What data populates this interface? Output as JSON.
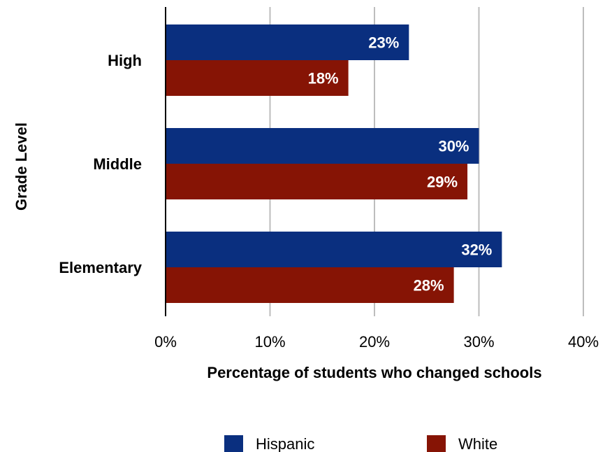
{
  "chart_data": {
    "type": "bar",
    "orientation": "horizontal",
    "categories": [
      "High",
      "Middle",
      "Elementary"
    ],
    "series": [
      {
        "name": "Hispanic",
        "color": "#0a2f7f",
        "values": [
          23.3,
          30.0,
          32.2
        ],
        "labels": [
          "23%",
          "30%",
          "32%"
        ]
      },
      {
        "name": "White",
        "color": "#861405",
        "values": [
          17.5,
          28.9,
          27.6
        ],
        "labels": [
          "18%",
          "29%",
          "28%"
        ]
      }
    ],
    "xlabel": "Percentage of students who changed schools",
    "ylabel": "Grade Level",
    "xlim": [
      0,
      40
    ],
    "xticks": [
      0,
      10,
      20,
      30,
      40
    ],
    "xtick_labels": [
      "0%",
      "10%",
      "20%",
      "30%",
      "40%"
    ],
    "grid": "vertical",
    "legend": "bottom"
  }
}
